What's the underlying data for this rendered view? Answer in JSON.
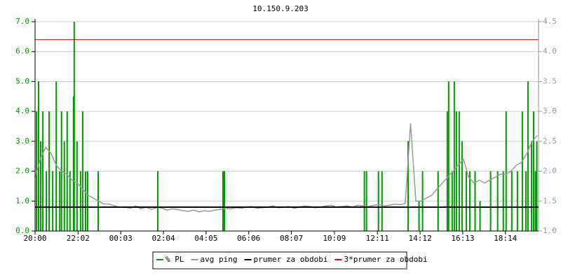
{
  "chart_data": {
    "type": "line",
    "title": "10.150.9.203",
    "xlim": [
      0,
      1428
    ],
    "xticks": [
      {
        "value": 0,
        "label": "20:00"
      },
      {
        "value": 122,
        "label": "22:02"
      },
      {
        "value": 243,
        "label": "00:03"
      },
      {
        "value": 364,
        "label": "02:04"
      },
      {
        "value": 485,
        "label": "04:05"
      },
      {
        "value": 606,
        "label": "06:06"
      },
      {
        "value": 727,
        "label": "08:07"
      },
      {
        "value": 849,
        "label": "10:09"
      },
      {
        "value": 971,
        "label": "12:11"
      },
      {
        "value": 1092,
        "label": "14:12"
      },
      {
        "value": 1213,
        "label": "16:13"
      },
      {
        "value": 1334,
        "label": "18:14"
      }
    ],
    "ylim": [
      0,
      7
    ],
    "yticks": [
      {
        "value": 0,
        "label": "0.0"
      },
      {
        "value": 1,
        "label": "1.0"
      },
      {
        "value": 2,
        "label": "2.0"
      },
      {
        "value": 3,
        "label": "3.0"
      },
      {
        "value": 4,
        "label": "4.0"
      },
      {
        "value": 5,
        "label": "5.0"
      },
      {
        "value": 6,
        "label": "6.0"
      },
      {
        "value": 7,
        "label": "7.0"
      }
    ],
    "y2lim": [
      1,
      4.5
    ],
    "y2ticks": [
      {
        "value": 1,
        "label": "1.0"
      },
      1.5,
      {
        "value": 2,
        "label": "2.0"
      },
      2.5,
      {
        "value": 3,
        "label": "3.0"
      },
      3.5,
      {
        "value": 4,
        "label": "4.0"
      },
      4.5
    ],
    "ytick_color": "#009900",
    "y2tick_color": "#999999",
    "grid": true,
    "series": [
      {
        "name": "% PL",
        "color": "#009900",
        "style": "impulse",
        "x": [
          4,
          10,
          16,
          22,
          32,
          40,
          50,
          60,
          70,
          75,
          83,
          91,
          99,
          109,
          111,
          119,
          129,
          135,
          143,
          149,
          179,
          348,
          533,
          537,
          934,
          940,
          974,
          984,
          1058,
          1089,
          1099,
          1143,
          1169,
          1173,
          1183,
          1189,
          1195,
          1203,
          1211,
          1223,
          1233,
          1248,
          1262,
          1292,
          1312,
          1328,
          1336,
          1352,
          1368,
          1382,
          1392,
          1398,
          1408,
          1414,
          1419,
          1423
        ],
        "values": [
          4,
          5,
          3,
          4,
          2,
          4,
          2,
          5,
          2,
          4,
          3,
          4,
          2,
          4.5,
          7,
          3,
          2,
          4,
          2,
          2,
          2,
          2,
          2,
          2,
          2,
          2,
          2,
          2,
          3,
          1,
          2,
          2,
          4,
          5,
          2,
          5,
          4,
          4,
          3,
          2,
          2,
          2,
          1,
          2,
          2,
          2,
          4,
          2,
          2,
          4,
          2,
          5,
          3,
          4,
          2,
          3
        ]
      },
      {
        "name": "avg ping",
        "color": "#999999",
        "axis": "y2",
        "x": [
          0,
          15,
          30,
          45,
          60,
          75,
          90,
          105,
          120,
          135,
          150,
          165,
          180,
          195,
          210,
          225,
          240,
          255,
          270,
          285,
          300,
          315,
          330,
          345,
          360,
          375,
          390,
          405,
          420,
          435,
          450,
          465,
          480,
          495,
          510,
          525,
          540,
          555,
          570,
          585,
          600,
          615,
          630,
          645,
          660,
          675,
          690,
          705,
          720,
          735,
          750,
          765,
          780,
          795,
          810,
          825,
          840,
          855,
          870,
          885,
          900,
          915,
          930,
          945,
          960,
          975,
          990,
          1005,
          1020,
          1035,
          1050,
          1065,
          1080,
          1095,
          1110,
          1125,
          1140,
          1155,
          1170,
          1185,
          1200,
          1215,
          1230,
          1245,
          1260,
          1275,
          1290,
          1305,
          1320,
          1335,
          1350,
          1365,
          1380,
          1395,
          1410,
          1425
        ],
        "values": [
          1.9,
          2.2,
          2.4,
          2.3,
          2.1,
          2.0,
          1.95,
          1.85,
          1.8,
          1.7,
          1.6,
          1.55,
          1.5,
          1.45,
          1.45,
          1.42,
          1.4,
          1.4,
          1.38,
          1.42,
          1.37,
          1.4,
          1.36,
          1.39,
          1.38,
          1.35,
          1.37,
          1.36,
          1.34,
          1.33,
          1.35,
          1.32,
          1.34,
          1.33,
          1.35,
          1.36,
          1.38,
          1.37,
          1.39,
          1.38,
          1.4,
          1.41,
          1.38,
          1.39,
          1.4,
          1.42,
          1.39,
          1.4,
          1.41,
          1.38,
          1.4,
          1.42,
          1.41,
          1.39,
          1.4,
          1.42,
          1.43,
          1.4,
          1.41,
          1.42,
          1.4,
          1.43,
          1.42,
          1.41,
          1.43,
          1.44,
          1.42,
          1.43,
          1.45,
          1.44,
          1.46,
          2.8,
          1.5,
          1.5,
          1.55,
          1.6,
          1.7,
          1.8,
          1.9,
          2.0,
          2.1,
          2.2,
          1.9,
          1.8,
          1.85,
          1.8,
          1.85,
          1.9,
          1.95,
          1.95,
          2.0,
          2.1,
          2.15,
          2.3,
          2.5,
          2.6
        ]
      },
      {
        "name": "prumer za obdobi",
        "color": "#000000",
        "axis": "y2",
        "style": "hline",
        "value": 1.4
      },
      {
        "name": "3*prumer za obdobi",
        "color": "#dd0000",
        "axis": "y2",
        "style": "hline",
        "value": 4.2
      }
    ]
  }
}
